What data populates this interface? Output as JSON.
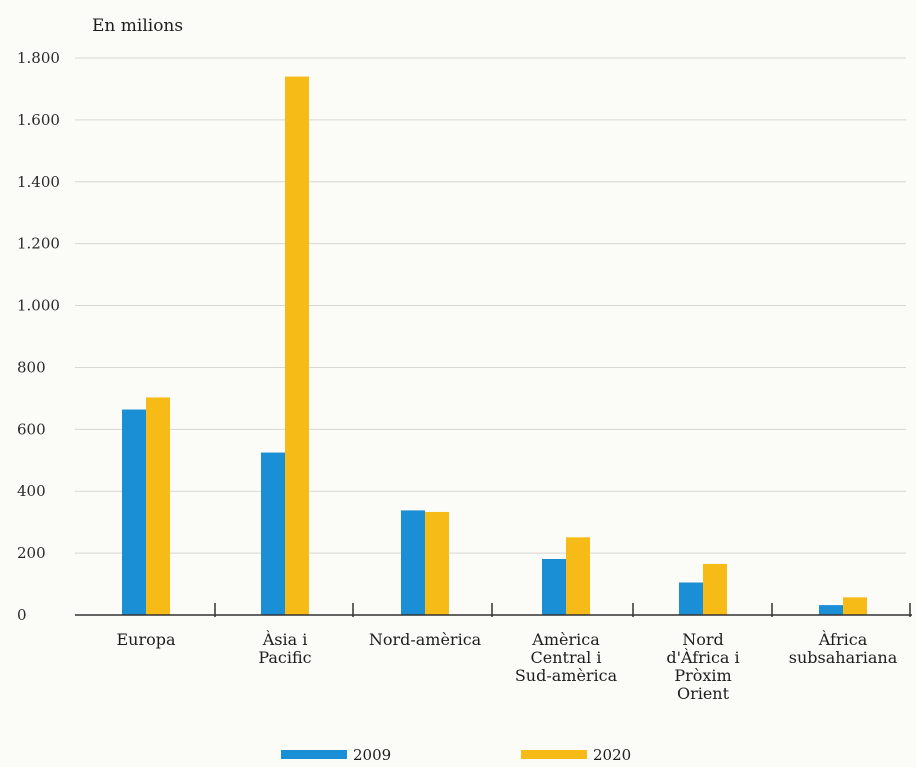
{
  "chart_data": {
    "type": "bar",
    "unit_label": "En milions",
    "categories": [
      [
        "Europa"
      ],
      [
        "Àsia i",
        "Pacific"
      ],
      [
        "Nord-amèrica"
      ],
      [
        "Amèrica",
        "Central i",
        "Sud-amèrica"
      ],
      [
        "Nord",
        "d'Àfrica i",
        "Pròxim",
        "Orient"
      ],
      [
        "Àfrica",
        "subsahariana"
      ]
    ],
    "series": [
      {
        "name": "2009",
        "color": "#1a8fd6",
        "values": [
          664,
          525,
          338,
          181,
          105,
          32
        ]
      },
      {
        "name": "2020",
        "color": "#f6bb16",
        "values": [
          703,
          1740,
          333,
          251,
          165,
          57
        ]
      }
    ],
    "ylim": [
      0,
      1800
    ],
    "yticks": [
      0,
      200,
      400,
      600,
      800,
      1000,
      1200,
      1400,
      1600,
      1800
    ],
    "ytick_labels": [
      "0",
      "200",
      "400",
      "600",
      "800",
      "1.000",
      "1.200",
      "1.400",
      "1.600",
      "1.800"
    ],
    "grid": true,
    "legend_position": "bottom"
  }
}
